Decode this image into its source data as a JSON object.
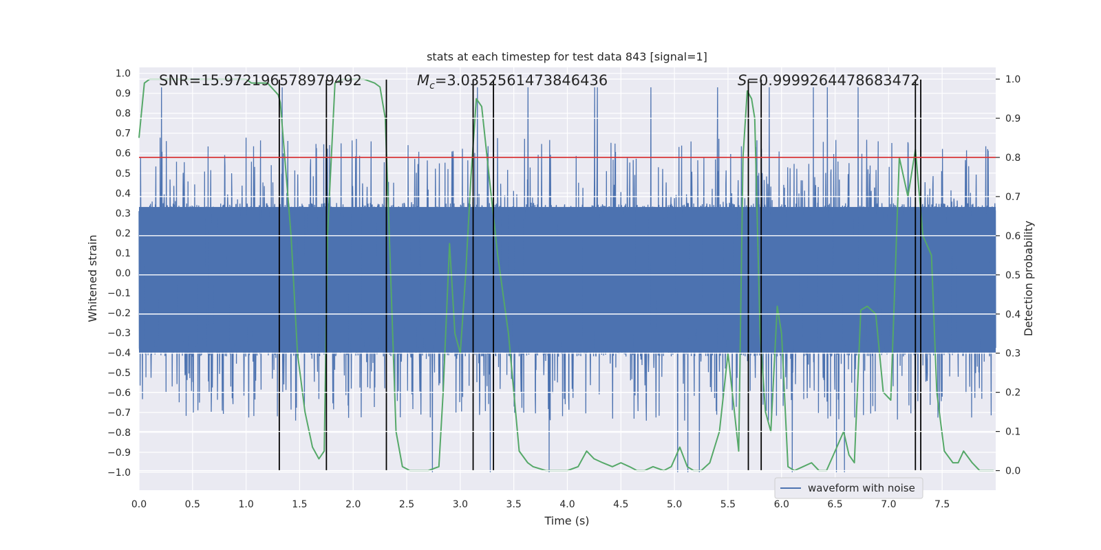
{
  "chart_data": {
    "type": "line",
    "title": "stats at each timestep for test data 843 [signal=1]",
    "xlabel": "Time (s)",
    "ylabel_left": "Whitened strain",
    "ylabel_right": "Detection probability",
    "xlim": [
      0.0,
      8.0
    ],
    "ylim_left": [
      -1.09,
      1.03
    ],
    "ylim_right": [
      -0.05,
      1.03
    ],
    "x_ticks": [
      "0.0",
      "0.5",
      "1.0",
      "1.5",
      "2.0",
      "2.5",
      "3.0",
      "3.5",
      "4.0",
      "4.5",
      "5.0",
      "5.5",
      "6.0",
      "6.5",
      "7.0",
      "7.5"
    ],
    "y_ticks_left": [
      "1.0",
      "0.9",
      "0.8",
      "0.7",
      "0.6",
      "0.5",
      "0.4",
      "0.3",
      "0.2",
      "0.1",
      "0.0",
      "-0.1",
      "-0.2",
      "-0.3",
      "-0.4",
      "-0.5",
      "-0.6",
      "-0.7",
      "-0.8",
      "-0.9",
      "-1.0"
    ],
    "y_ticks_right": [
      "1.0",
      "0.9",
      "0.8",
      "0.7",
      "0.6",
      "0.5",
      "0.4",
      "0.3",
      "0.2",
      "0.1",
      "0.0"
    ],
    "annotations": {
      "snr": "SNR=15.972196578979492",
      "mc_symbol": "M",
      "mc_sub": "c",
      "mc_value": "=3.0352561473846436",
      "s_symbol": "S",
      "s_value": "=0.9999264478683472"
    },
    "legend": {
      "label": "waveform with noise",
      "position": "bottom-right"
    },
    "threshold": {
      "value": 0.8,
      "axis": "right",
      "color": "#d62728"
    },
    "vertical_markers": [
      1.31,
      1.75,
      2.31,
      3.12,
      3.31,
      5.69,
      5.81,
      7.25,
      7.3
    ],
    "waveform": {
      "name": "waveform with noise",
      "color": "#4c72b0",
      "body_range": [
        -0.42,
        0.35
      ],
      "peak_range": [
        -1.0,
        0.93
      ],
      "sample_rate": 400
    },
    "detection_probability": {
      "name": "Detection probability",
      "color": "#55a868",
      "x": [
        0.0,
        0.05,
        0.1,
        0.2,
        0.4,
        0.6,
        0.8,
        1.0,
        1.05,
        1.2,
        1.2,
        1.3,
        1.32,
        1.42,
        1.48,
        1.55,
        1.62,
        1.68,
        1.73,
        1.76,
        1.83,
        1.9,
        2.0,
        2.1,
        2.2,
        2.25,
        2.3,
        2.4,
        2.46,
        2.53,
        2.6,
        2.7,
        2.8,
        2.84,
        2.9,
        2.95,
        3.0,
        3.05,
        3.1,
        3.15,
        3.2,
        3.27,
        3.35,
        3.45,
        3.55,
        3.63,
        3.68,
        3.8,
        4.0,
        4.1,
        4.18,
        4.25,
        4.33,
        4.42,
        4.5,
        4.58,
        4.65,
        4.72,
        4.8,
        4.9,
        4.97,
        5.05,
        5.12,
        5.18,
        5.25,
        5.33,
        5.42,
        5.5,
        5.6,
        5.64,
        5.68,
        5.72,
        5.75,
        5.8,
        5.85,
        5.9,
        5.96,
        6.0,
        6.06,
        6.12,
        6.2,
        6.28,
        6.35,
        6.42,
        6.5,
        6.58,
        6.63,
        6.68,
        6.74,
        6.8,
        6.88,
        6.95,
        7.02,
        7.1,
        7.18,
        7.25,
        7.32,
        7.4,
        7.45,
        7.52,
        7.6,
        7.65,
        7.7,
        7.78,
        7.85,
        7.92,
        7.98
      ],
      "y": [
        0.85,
        0.99,
        1.0,
        1.0,
        1.0,
        1.0,
        1.0,
        1.0,
        0.99,
        0.99,
        0.99,
        0.96,
        0.94,
        0.6,
        0.3,
        0.15,
        0.06,
        0.03,
        0.05,
        0.6,
        0.99,
        1.0,
        1.0,
        1.0,
        0.99,
        0.98,
        0.9,
        0.1,
        0.01,
        0.0,
        0.0,
        0.0,
        0.01,
        0.2,
        0.58,
        0.35,
        0.3,
        0.5,
        0.75,
        0.95,
        0.93,
        0.75,
        0.55,
        0.35,
        0.05,
        0.02,
        0.01,
        0.0,
        0.0,
        0.01,
        0.05,
        0.03,
        0.02,
        0.01,
        0.02,
        0.01,
        0.0,
        0.0,
        0.01,
        0.0,
        0.01,
        0.06,
        0.01,
        0.0,
        0.0,
        0.02,
        0.1,
        0.3,
        0.05,
        0.8,
        0.97,
        0.95,
        0.9,
        0.35,
        0.15,
        0.1,
        0.42,
        0.35,
        0.01,
        0.0,
        0.01,
        0.02,
        0.0,
        0.0,
        0.05,
        0.1,
        0.04,
        0.02,
        0.41,
        0.42,
        0.4,
        0.2,
        0.18,
        0.8,
        0.7,
        0.82,
        0.6,
        0.55,
        0.2,
        0.05,
        0.02,
        0.02,
        0.05,
        0.02,
        0.0,
        0.0,
        0.0
      ]
    }
  }
}
